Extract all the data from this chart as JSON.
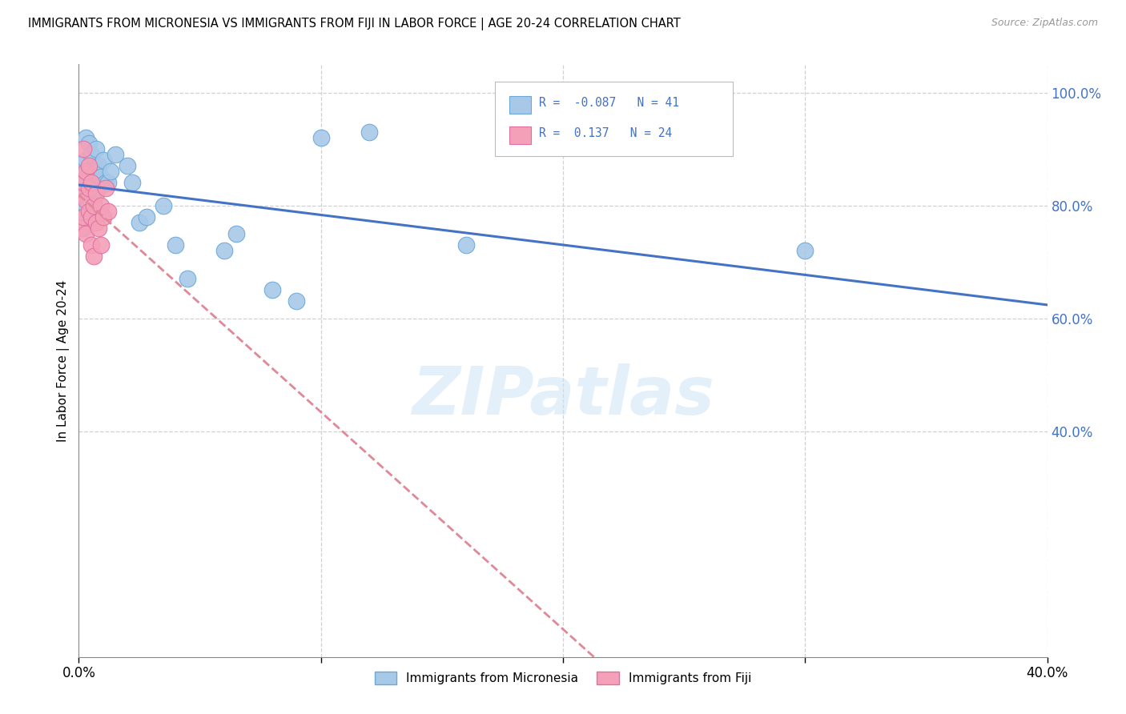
{
  "title": "IMMIGRANTS FROM MICRONESIA VS IMMIGRANTS FROM FIJI IN LABOR FORCE | AGE 20-24 CORRELATION CHART",
  "source": "Source: ZipAtlas.com",
  "ylabel": "In Labor Force | Age 20-24",
  "xlim": [
    0.0,
    0.4
  ],
  "ylim": [
    0.0,
    1.05
  ],
  "yticks_right": [
    0.4,
    0.6,
    0.8,
    1.0
  ],
  "ytick_labels_right": [
    "40.0%",
    "60.0%",
    "80.0%",
    "100.0%"
  ],
  "micronesia_r": -0.087,
  "micronesia_n": 41,
  "fiji_r": 0.137,
  "fiji_n": 24,
  "micronesia_color": "#a8c8e8",
  "fiji_color": "#f4a0b8",
  "micronesia_edge": "#6aa8d8",
  "fiji_edge": "#e070a0",
  "micronesia_line_color": "#4472c4",
  "fiji_line_color": "#e08898",
  "legend_label_micronesia": "Immigrants from Micronesia",
  "legend_label_fiji": "Immigrants from Fiji",
  "watermark": "ZIPatlas",
  "micronesia_x": [
    0.001,
    0.001,
    0.002,
    0.002,
    0.002,
    0.003,
    0.003,
    0.003,
    0.003,
    0.004,
    0.004,
    0.005,
    0.005,
    0.005,
    0.006,
    0.006,
    0.007,
    0.007,
    0.008,
    0.008,
    0.009,
    0.01,
    0.011,
    0.012,
    0.013,
    0.015,
    0.02,
    0.022,
    0.025,
    0.028,
    0.035,
    0.04,
    0.045,
    0.06,
    0.065,
    0.08,
    0.09,
    0.1,
    0.12,
    0.16,
    0.3
  ],
  "micronesia_y": [
    0.83,
    0.79,
    0.87,
    0.82,
    0.76,
    0.92,
    0.88,
    0.84,
    0.8,
    0.91,
    0.86,
    0.89,
    0.83,
    0.78,
    0.85,
    0.81,
    0.9,
    0.86,
    0.83,
    0.87,
    0.85,
    0.88,
    0.84,
    0.84,
    0.86,
    0.89,
    0.87,
    0.84,
    0.77,
    0.78,
    0.8,
    0.73,
    0.67,
    0.72,
    0.75,
    0.65,
    0.63,
    0.92,
    0.93,
    0.73,
    0.72
  ],
  "fiji_x": [
    0.001,
    0.001,
    0.002,
    0.002,
    0.002,
    0.003,
    0.003,
    0.003,
    0.004,
    0.004,
    0.004,
    0.005,
    0.005,
    0.005,
    0.006,
    0.006,
    0.007,
    0.007,
    0.008,
    0.009,
    0.009,
    0.01,
    0.011,
    0.012
  ],
  "fiji_y": [
    0.82,
    0.76,
    0.9,
    0.84,
    0.78,
    0.86,
    0.81,
    0.75,
    0.83,
    0.87,
    0.79,
    0.84,
    0.78,
    0.73,
    0.8,
    0.71,
    0.77,
    0.82,
    0.76,
    0.8,
    0.73,
    0.78,
    0.83,
    0.79
  ]
}
